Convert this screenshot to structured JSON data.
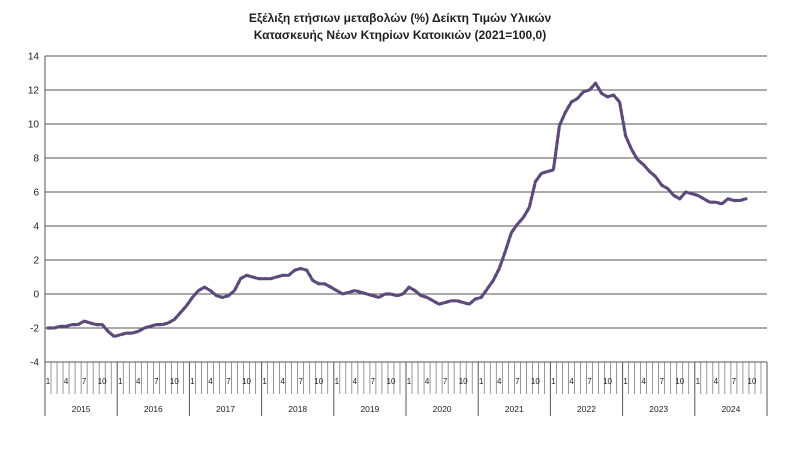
{
  "chart_data": {
    "type": "line",
    "title": "Εξέλιξη ετήσιων μεταβολών (%) Δείκτη Τιμών Υλικών Κατασκευής Νέων Κτηρίων Κατοικιών (2021=100,0)",
    "title_lines": [
      "Εξέλιξη ετήσιων μεταβολών (%) Δείκτη Τιμών Υλικών",
      "Κατασκευής Νέων Κτηρίων Κατοικιών (2021=100,0)"
    ],
    "xlabel": "",
    "ylabel": "",
    "ylim": [
      -4,
      14
    ],
    "y_ticks": [
      -4,
      -2,
      0,
      2,
      4,
      6,
      8,
      10,
      12,
      14
    ],
    "grid": "horizontal",
    "legend": "none",
    "line_color": "#5b4a7a",
    "line_style": "dashed",
    "years": [
      "2015",
      "2016",
      "2017",
      "2018",
      "2019",
      "2020",
      "2021",
      "2022",
      "2023",
      "2024"
    ],
    "month_ticks": [
      "1",
      "4",
      "7",
      "10"
    ],
    "series": [
      {
        "values": [
          -2.0,
          -2.0,
          -1.9,
          -1.9,
          -1.8,
          -1.8,
          -1.6,
          -1.7,
          -1.8,
          -1.8,
          -2.2,
          -2.5,
          -2.4,
          -2.3,
          -2.3,
          -2.2,
          -2.0,
          -1.9,
          -1.8,
          -1.8,
          -1.7,
          -1.5,
          -1.1,
          -0.7,
          -0.2,
          0.2,
          0.4,
          0.2,
          -0.1,
          -0.2,
          -0.1,
          0.2,
          0.9,
          1.1,
          1.0,
          0.9,
          0.9,
          0.9,
          1.0,
          1.1,
          1.1,
          1.4,
          1.5,
          1.4,
          0.8,
          0.6,
          0.6,
          0.4,
          0.2,
          0.0,
          0.1,
          0.2,
          0.1,
          0.0,
          -0.1,
          -0.2,
          0.0,
          0.0,
          -0.1,
          0.0,
          0.4,
          0.2,
          -0.1,
          -0.2,
          -0.4,
          -0.6,
          -0.5,
          -0.4,
          -0.4,
          -0.5,
          -0.6,
          -0.3,
          -0.2,
          0.3,
          0.8,
          1.5,
          2.5,
          3.6,
          4.1,
          4.5,
          5.1,
          6.6,
          7.1,
          7.2,
          7.3,
          9.9,
          10.7,
          11.3,
          11.5,
          11.9,
          12.0,
          12.4,
          11.8,
          11.6,
          11.7,
          11.3,
          9.3,
          8.5,
          7.9,
          7.6,
          7.2,
          6.9,
          6.4,
          6.2,
          5.8,
          5.6,
          6.0,
          5.9,
          5.8,
          5.6,
          5.4,
          5.4,
          5.3,
          5.6,
          5.5,
          5.5,
          5.6
        ]
      }
    ]
  }
}
